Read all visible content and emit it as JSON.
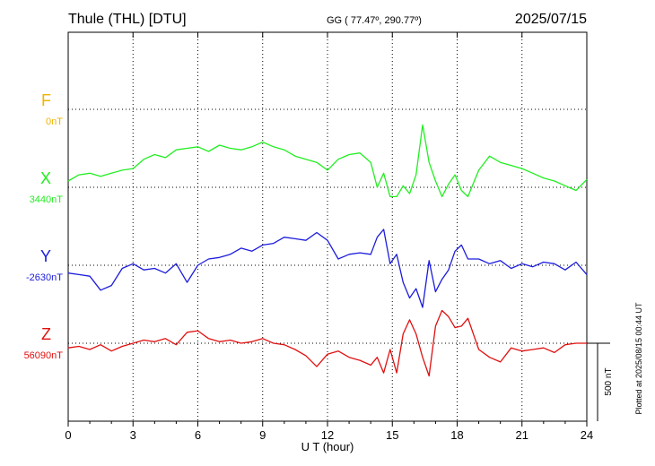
{
  "header": {
    "station": "Thule (THL)  [DTU]",
    "coords": "GG ( 77.47º, 290.77º)",
    "date": "2025/07/15"
  },
  "footer": {
    "plotted": "Plotted at 2025/08/15 00:44 UT"
  },
  "chart_data": {
    "type": "line",
    "title": "Thule (THL)  [DTU]",
    "subtitle": "GG ( 77.47º, 290.77º)",
    "date": "2025/07/15",
    "xlabel": "U T (hour)",
    "xlim": [
      0,
      24
    ],
    "x_ticks": [
      0,
      3,
      6,
      9,
      12,
      15,
      18,
      21,
      24
    ],
    "x_tick_labels": [
      "0",
      "3",
      "6",
      "9",
      "12",
      "15",
      "18",
      "21",
      "24"
    ],
    "scale_bar": {
      "label": "500 nT",
      "value_nT": 500
    },
    "grid": "dotted",
    "series": [
      {
        "name": "F",
        "baseline": "0nT",
        "color": "#f0b400",
        "x": [],
        "y": []
      },
      {
        "name": "X",
        "baseline": "3440nT",
        "color": "#22ee22",
        "x": [
          0,
          0.5,
          1,
          1.5,
          2,
          2.5,
          3,
          3.5,
          4,
          4.5,
          5,
          5.5,
          6,
          6.5,
          7,
          7.5,
          8,
          8.5,
          9,
          9.5,
          10,
          10.5,
          11,
          11.5,
          12,
          12.5,
          13,
          13.5,
          14,
          14.3,
          14.6,
          14.9,
          15.2,
          15.5,
          15.8,
          16.1,
          16.4,
          16.7,
          17,
          17.3,
          17.6,
          17.9,
          18.2,
          18.5,
          19,
          19.5,
          20,
          20.5,
          21,
          21.5,
          22,
          22.5,
          23,
          23.5,
          24
        ],
        "y": [
          3480,
          3520,
          3530,
          3510,
          3530,
          3550,
          3560,
          3620,
          3650,
          3630,
          3680,
          3690,
          3700,
          3670,
          3710,
          3690,
          3680,
          3700,
          3730,
          3700,
          3680,
          3640,
          3620,
          3600,
          3550,
          3620,
          3650,
          3660,
          3600,
          3440,
          3530,
          3380,
          3380,
          3450,
          3400,
          3520,
          3840,
          3600,
          3480,
          3380,
          3460,
          3520,
          3420,
          3380,
          3550,
          3640,
          3600,
          3580,
          3560,
          3530,
          3500,
          3480,
          3450,
          3420,
          3490
        ],
        "ylim_note": "value = baseline + deviation"
      },
      {
        "name": "Y",
        "baseline": "-2630nT",
        "color": "#1c1cdc",
        "x": [
          0,
          0.5,
          1,
          1.5,
          2,
          2.5,
          3,
          3.5,
          4,
          4.5,
          5,
          5.5,
          6,
          6.5,
          7,
          7.5,
          8,
          8.5,
          9,
          9.5,
          10,
          10.5,
          11,
          11.5,
          12,
          12.5,
          13,
          13.5,
          14,
          14.3,
          14.6,
          14.9,
          15.2,
          15.5,
          15.8,
          16.1,
          16.4,
          16.7,
          17,
          17.3,
          17.6,
          17.9,
          18.2,
          18.5,
          19,
          19.5,
          20,
          20.5,
          21,
          21.5,
          22,
          22.5,
          23,
          23.5,
          24
        ],
        "y": [
          -2680,
          -2690,
          -2700,
          -2790,
          -2760,
          -2650,
          -2620,
          -2660,
          -2650,
          -2680,
          -2620,
          -2740,
          -2630,
          -2590,
          -2580,
          -2560,
          -2520,
          -2540,
          -2500,
          -2490,
          -2450,
          -2460,
          -2470,
          -2420,
          -2470,
          -2590,
          -2560,
          -2550,
          -2560,
          -2450,
          -2400,
          -2620,
          -2560,
          -2740,
          -2840,
          -2780,
          -2900,
          -2600,
          -2800,
          -2720,
          -2660,
          -2540,
          -2500,
          -2590,
          -2590,
          -2620,
          -2600,
          -2650,
          -2620,
          -2640,
          -2610,
          -2620,
          -2660,
          -2610,
          -2690
        ]
      },
      {
        "name": "Z",
        "baseline": "56090nT",
        "color": "#e01010",
        "x": [
          0,
          0.5,
          1,
          1.5,
          2,
          2.5,
          3,
          3.5,
          4,
          4.5,
          5,
          5.5,
          6,
          6.5,
          7,
          7.5,
          8,
          8.5,
          9,
          9.5,
          10,
          10.5,
          11,
          11.5,
          12,
          12.5,
          13,
          13.5,
          14,
          14.3,
          14.6,
          14.9,
          15.2,
          15.5,
          15.8,
          16.1,
          16.4,
          16.7,
          17,
          17.3,
          17.6,
          17.9,
          18.2,
          18.5,
          19,
          19.5,
          20,
          20.5,
          21,
          21.5,
          22,
          22.5,
          23,
          23.5,
          24
        ],
        "y": [
          56060,
          56070,
          56050,
          56080,
          56040,
          56070,
          56090,
          56110,
          56100,
          56120,
          56080,
          56160,
          56170,
          56120,
          56100,
          56110,
          56090,
          56100,
          56120,
          56090,
          56080,
          56050,
          56010,
          55940,
          56020,
          56040,
          56000,
          55980,
          55950,
          56000,
          55900,
          56050,
          55900,
          56150,
          56240,
          56150,
          56000,
          55880,
          56200,
          56300,
          56260,
          56190,
          56200,
          56250,
          56050,
          56000,
          55970,
          56060,
          56040,
          56050,
          56060,
          56030,
          56080,
          56090,
          56090
        ]
      }
    ]
  }
}
